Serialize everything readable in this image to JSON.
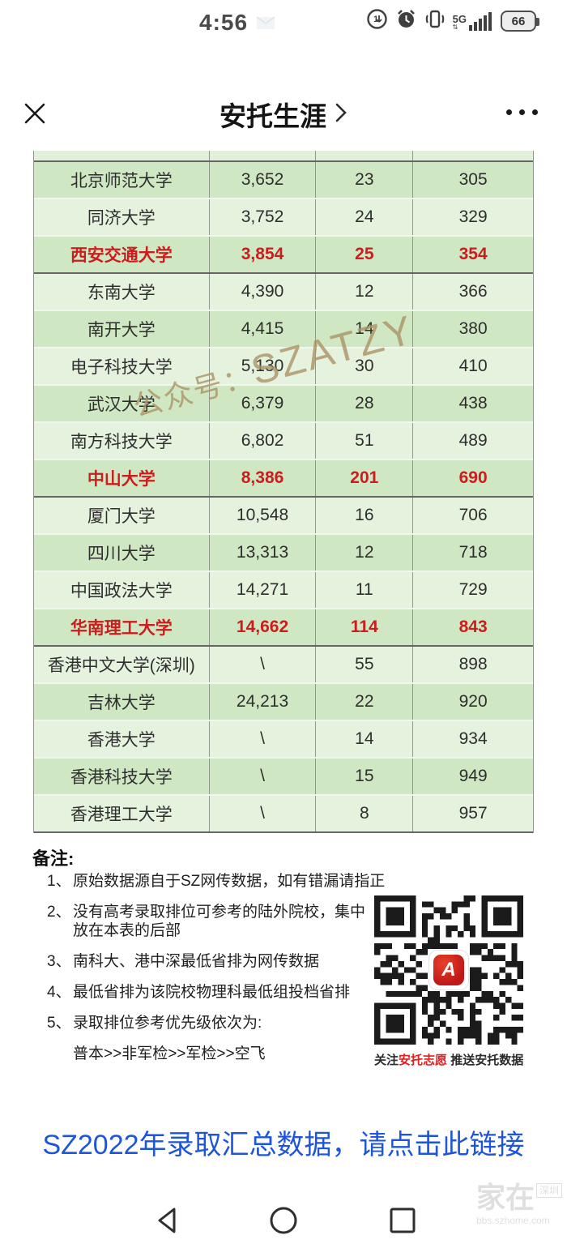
{
  "status_bar": {
    "time": "4:56",
    "network": "5G",
    "battery_percent": "66"
  },
  "header": {
    "title": "安托生涯"
  },
  "table": {
    "rows": [
      {
        "name": "北京师范大学",
        "values": [
          "3,652",
          "23",
          "305"
        ],
        "red": false,
        "sep": false
      },
      {
        "name": "同济大学",
        "values": [
          "3,752",
          "24",
          "329"
        ],
        "red": false,
        "sep": false
      },
      {
        "name": "西安交通大学",
        "values": [
          "3,854",
          "25",
          "354"
        ],
        "red": true,
        "sep": true
      },
      {
        "name": "东南大学",
        "values": [
          "4,390",
          "12",
          "366"
        ],
        "red": false,
        "sep": false
      },
      {
        "name": "南开大学",
        "values": [
          "4,415",
          "14",
          "380"
        ],
        "red": false,
        "sep": false
      },
      {
        "name": "电子科技大学",
        "values": [
          "5,130",
          "30",
          "410"
        ],
        "red": false,
        "sep": false
      },
      {
        "name": "武汉大学",
        "values": [
          "6,379",
          "28",
          "438"
        ],
        "red": false,
        "sep": false
      },
      {
        "name": "南方科技大学",
        "values": [
          "6,802",
          "51",
          "489"
        ],
        "red": false,
        "sep": false
      },
      {
        "name": "中山大学",
        "values": [
          "8,386",
          "201",
          "690"
        ],
        "red": true,
        "sep": true
      },
      {
        "name": "厦门大学",
        "values": [
          "10,548",
          "16",
          "706"
        ],
        "red": false,
        "sep": false
      },
      {
        "name": "四川大学",
        "values": [
          "13,313",
          "12",
          "718"
        ],
        "red": false,
        "sep": false
      },
      {
        "name": "中国政法大学",
        "values": [
          "14,271",
          "11",
          "729"
        ],
        "red": false,
        "sep": false
      },
      {
        "name": "华南理工大学",
        "values": [
          "14,662",
          "114",
          "843"
        ],
        "red": true,
        "sep": true
      },
      {
        "name": "香港中文大学(深圳)",
        "values": [
          "\\",
          "55",
          "898"
        ],
        "red": false,
        "sep": false
      },
      {
        "name": "吉林大学",
        "values": [
          "24,213",
          "22",
          "920"
        ],
        "red": false,
        "sep": false
      },
      {
        "name": "香港大学",
        "values": [
          "\\",
          "14",
          "934"
        ],
        "red": false,
        "sep": false
      },
      {
        "name": "香港科技大学",
        "values": [
          "\\",
          "15",
          "949"
        ],
        "red": false,
        "sep": false
      },
      {
        "name": "香港理工大学",
        "values": [
          "\\",
          "8",
          "957"
        ],
        "red": false,
        "sep": false
      }
    ]
  },
  "watermark": {
    "prefix": "公众号：",
    "brand": "SZATZY"
  },
  "notes": {
    "label": "备注:",
    "items": [
      {
        "num": "1、",
        "text": "原始数据源自于SZ网传数据，如有错漏请指正"
      },
      {
        "num": "2、",
        "text": "没有高考录取排位可参考的陆外院校，集中\n放在本表的后部"
      },
      {
        "num": "3、",
        "text": "南科大、港中深最低省排为网传数据"
      },
      {
        "num": "4、",
        "text": "最低省排为该院校物理科最低组投档省排"
      },
      {
        "num": "5、",
        "text": "录取排位参考优先级依次为:"
      },
      {
        "num": "",
        "text": "普本>>非军检>>军检>>空飞"
      }
    ]
  },
  "qr": {
    "logo_letter": "A",
    "caption": {
      "prefix": "关注",
      "brand": "安托志愿",
      "suffix": " 推送安托数据"
    }
  },
  "link": {
    "text": "SZ2022年录取汇总数据，请点击此链接"
  },
  "site_watermark": {
    "line1": "家在",
    "badge": "深圳",
    "line2": "bbs.szhome.com"
  },
  "colors": {
    "row_dark": "#cfe7c2",
    "row_light": "#e5f2de",
    "accent_red": "#cb1d1d",
    "link_blue": "#1d55db",
    "brand_red": "#e02020",
    "grid_gray": "#8f998f",
    "sep_dark": "#666666"
  }
}
